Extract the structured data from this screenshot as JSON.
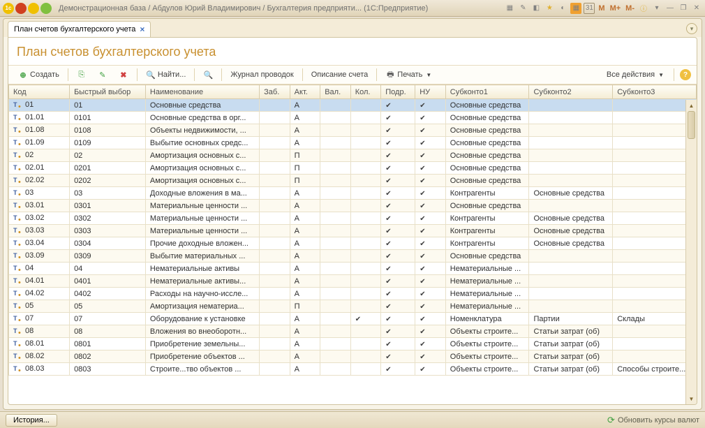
{
  "titlebar": {
    "title": "Демонстрационная база / Абдулов Юрий Владимирович / Бухгалтерия предприяти...   (1С:Предприятие)"
  },
  "tab": {
    "label": "План счетов бухгалтерского учета"
  },
  "page": {
    "title": "План счетов бухгалтерского учета"
  },
  "toolbar": {
    "create": "Создать",
    "find": "Найти...",
    "journal": "Журнал проводок",
    "desc": "Описание счета",
    "print": "Печать",
    "all_actions": "Все действия"
  },
  "columns": {
    "kod": "Код",
    "bv": "Быстрый выбор",
    "name": "Наименование",
    "zab": "Заб.",
    "akt": "Акт.",
    "val": "Вал.",
    "kol": "Кол.",
    "podr": "Подр.",
    "nu": "НУ",
    "s1": "Субконто1",
    "s2": "Субконто2",
    "s3": "Субконто3"
  },
  "rows": [
    {
      "kod": "01",
      "bv": "01",
      "name": "Основные средства",
      "akt": "А",
      "podr": true,
      "nu": true,
      "s1": "Основные средства",
      "s2": "",
      "s3": "",
      "sel": true
    },
    {
      "kod": "01.01",
      "bv": "0101",
      "name": "Основные средства в орг...",
      "akt": "А",
      "podr": true,
      "nu": true,
      "s1": "Основные средства",
      "s2": "",
      "s3": ""
    },
    {
      "kod": "01.08",
      "bv": "0108",
      "name": "Объекты недвижимости, ...",
      "akt": "А",
      "podr": true,
      "nu": true,
      "s1": "Основные средства",
      "s2": "",
      "s3": ""
    },
    {
      "kod": "01.09",
      "bv": "0109",
      "name": "Выбытие основных средс...",
      "akt": "А",
      "podr": true,
      "nu": true,
      "s1": "Основные средства",
      "s2": "",
      "s3": ""
    },
    {
      "kod": "02",
      "bv": "02",
      "name": "Амортизация основных с...",
      "akt": "П",
      "podr": true,
      "nu": true,
      "s1": "Основные средства",
      "s2": "",
      "s3": ""
    },
    {
      "kod": "02.01",
      "bv": "0201",
      "name": "Амортизация основных с...",
      "akt": "П",
      "podr": true,
      "nu": true,
      "s1": "Основные средства",
      "s2": "",
      "s3": ""
    },
    {
      "kod": "02.02",
      "bv": "0202",
      "name": "Амортизация основных с...",
      "akt": "П",
      "podr": true,
      "nu": true,
      "s1": "Основные средства",
      "s2": "",
      "s3": ""
    },
    {
      "kod": "03",
      "bv": "03",
      "name": "Доходные вложения в ма...",
      "akt": "А",
      "podr": true,
      "nu": true,
      "s1": "Контрагенты",
      "s2": "Основные средства",
      "s3": ""
    },
    {
      "kod": "03.01",
      "bv": "0301",
      "name": "Материальные ценности ...",
      "akt": "А",
      "podr": true,
      "nu": true,
      "s1": "Основные средства",
      "s2": "",
      "s3": ""
    },
    {
      "kod": "03.02",
      "bv": "0302",
      "name": "Материальные ценности ...",
      "akt": "А",
      "podr": true,
      "nu": true,
      "s1": "Контрагенты",
      "s2": "Основные средства",
      "s3": ""
    },
    {
      "kod": "03.03",
      "bv": "0303",
      "name": "Материальные ценности ...",
      "akt": "А",
      "podr": true,
      "nu": true,
      "s1": "Контрагенты",
      "s2": "Основные средства",
      "s3": ""
    },
    {
      "kod": "03.04",
      "bv": "0304",
      "name": "Прочие доходные вложен...",
      "akt": "А",
      "podr": true,
      "nu": true,
      "s1": "Контрагенты",
      "s2": "Основные средства",
      "s3": ""
    },
    {
      "kod": "03.09",
      "bv": "0309",
      "name": "Выбытие материальных ...",
      "akt": "А",
      "podr": true,
      "nu": true,
      "s1": "Основные средства",
      "s2": "",
      "s3": ""
    },
    {
      "kod": "04",
      "bv": "04",
      "name": "Нематериальные активы",
      "akt": "А",
      "podr": true,
      "nu": true,
      "s1": "Нематериальные ...",
      "s2": "",
      "s3": ""
    },
    {
      "kod": "04.01",
      "bv": "0401",
      "name": "Нематериальные активы...",
      "akt": "А",
      "podr": true,
      "nu": true,
      "s1": "Нематериальные ...",
      "s2": "",
      "s3": ""
    },
    {
      "kod": "04.02",
      "bv": "0402",
      "name": "Расходы на научно-иссле...",
      "akt": "А",
      "podr": true,
      "nu": true,
      "s1": "Нематериальные ...",
      "s2": "",
      "s3": ""
    },
    {
      "kod": "05",
      "bv": "05",
      "name": "Амортизация нематериа...",
      "akt": "П",
      "podr": true,
      "nu": true,
      "s1": "Нематериальные ...",
      "s2": "",
      "s3": ""
    },
    {
      "kod": "07",
      "bv": "07",
      "name": "Оборудование к установке",
      "akt": "А",
      "kol": true,
      "podr": true,
      "nu": true,
      "s1": "Номенклатура",
      "s2": "Партии",
      "s3": "Склады"
    },
    {
      "kod": "08",
      "bv": "08",
      "name": "Вложения во внеоборотн...",
      "akt": "А",
      "podr": true,
      "nu": true,
      "s1": "Объекты строите...",
      "s2": "Статьи затрат (об)",
      "s3": ""
    },
    {
      "kod": "08.01",
      "bv": "0801",
      "name": "Приобретение земельны...",
      "akt": "А",
      "podr": true,
      "nu": true,
      "s1": "Объекты строите...",
      "s2": "Статьи затрат (об)",
      "s3": ""
    },
    {
      "kod": "08.02",
      "bv": "0802",
      "name": "Приобретение объектов ...",
      "akt": "А",
      "podr": true,
      "nu": true,
      "s1": "Объекты строите...",
      "s2": "Статьи затрат (об)",
      "s3": ""
    },
    {
      "kod": "08.03",
      "bv": "0803",
      "name": "Строите...тво объектов ...",
      "akt": "А",
      "podr": true,
      "nu": true,
      "s1": "Объекты строите...",
      "s2": "Статьи затрат (об)",
      "s3": "Способы строите..."
    }
  ],
  "statusbar": {
    "history": "История...",
    "refresh": "Обновить курсы валют"
  }
}
